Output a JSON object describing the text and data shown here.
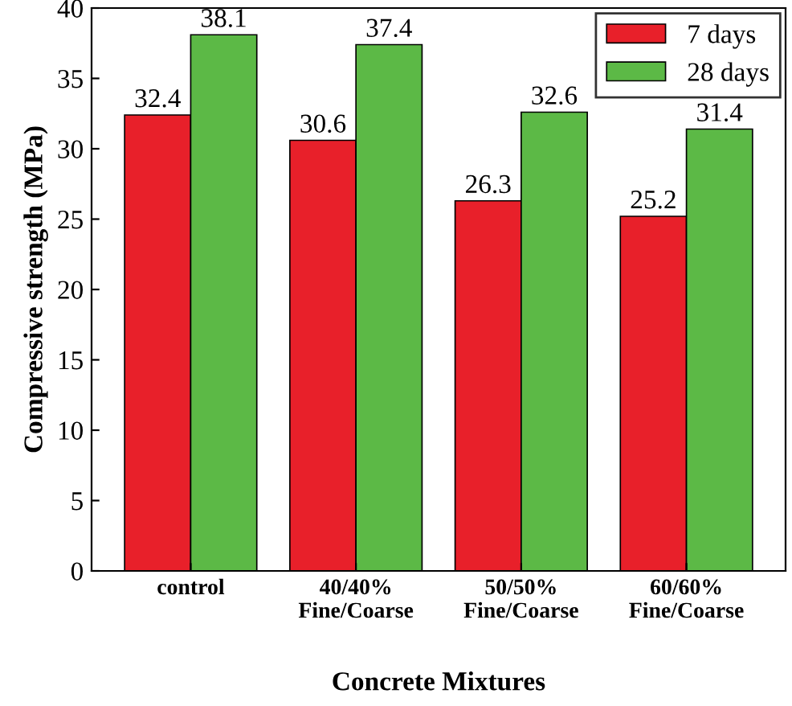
{
  "chart_data": {
    "type": "bar",
    "xlabel": "Concrete Mixtures",
    "ylabel": "Compressive strength (MPa)",
    "categories": [
      "control",
      "40/40%\nFine/Coarse",
      "50/50%\nFine/Coarse",
      "60/60%\nFine/Coarse"
    ],
    "series": [
      {
        "name": "7 days",
        "color": "#e8202a",
        "values": [
          32.4,
          30.6,
          26.3,
          25.2
        ]
      },
      {
        "name": "28 days",
        "color": "#5cb946",
        "values": [
          38.1,
          37.4,
          32.6,
          31.4
        ]
      }
    ],
    "ylim": [
      0,
      40
    ],
    "yticks": [
      0,
      5,
      10,
      15,
      20,
      25,
      30,
      35,
      40
    ],
    "data_labels": true,
    "legend": "top right",
    "grid": false
  }
}
